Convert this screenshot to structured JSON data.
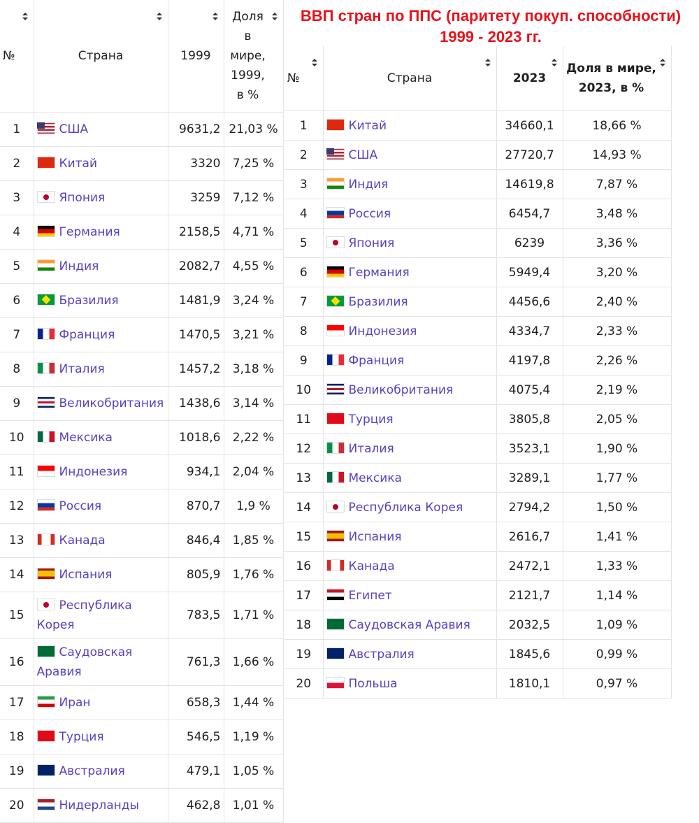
{
  "title": [
    "ВВП стран по ППС (паритету покуп. способности)",
    "1999 - 2023 гг."
  ],
  "table1": {
    "header": [
      "№",
      "Страна",
      "1999",
      "Доля в мире, 1999, в %"
    ],
    "rows": [
      [
        1,
        "США",
        "9631,2",
        "21,03 %"
      ],
      [
        2,
        "Китай",
        "3320",
        "7,25 %"
      ],
      [
        3,
        "Япония",
        "3259",
        "7,12 %"
      ],
      [
        4,
        "Германия",
        "2158,5",
        "4,71 %"
      ],
      [
        5,
        "Индия",
        "2082,7",
        "4,55 %"
      ],
      [
        6,
        "Бразилия",
        "1481,9",
        "3,24 %"
      ],
      [
        7,
        "Франция",
        "1470,5",
        "3,21 %"
      ],
      [
        8,
        "Италия",
        "1457,2",
        "3,18 %"
      ],
      [
        9,
        "Великобритания",
        "1438,6",
        "3,14 %"
      ],
      [
        10,
        "Мексика",
        "1018,6",
        "2,22 %"
      ],
      [
        11,
        "Индонезия",
        "934,1",
        "2,04 %"
      ],
      [
        12,
        "Россия",
        "870,7",
        "1,9 %"
      ],
      [
        13,
        "Канада",
        "846,4",
        "1,85 %"
      ],
      [
        14,
        "Испания",
        "805,9",
        "1,76 %"
      ],
      [
        15,
        "Республика Корея",
        "783,5",
        "1,71 %"
      ],
      [
        16,
        "Саудовская Аравия",
        "761,3",
        "1,66 %"
      ],
      [
        17,
        "Иран",
        "658,3",
        "1,44 %"
      ],
      [
        18,
        "Турция",
        "546,5",
        "1,19 %"
      ],
      [
        19,
        "Австралия",
        "479,1",
        "1,05 %"
      ],
      [
        20,
        "Нидерланды",
        "462,8",
        "1,01 %"
      ]
    ]
  },
  "table2": {
    "header": [
      "№",
      "Страна",
      "2023",
      "Доля в мире, 2023, в %"
    ],
    "rows": [
      [
        1,
        "Китай",
        "34660,1",
        "18,66 %"
      ],
      [
        2,
        "США",
        "27720,7",
        "14,93 %"
      ],
      [
        3,
        "Индия",
        "14619,8",
        "7,87 %"
      ],
      [
        4,
        "Россия",
        "6454,7",
        "3,48 %"
      ],
      [
        5,
        "Япония",
        "6239",
        "3,36 %"
      ],
      [
        6,
        "Германия",
        "5949,4",
        "3,20 %"
      ],
      [
        7,
        "Бразилия",
        "4456,6",
        "2,40 %"
      ],
      [
        8,
        "Индонезия",
        "4334,7",
        "2,33 %"
      ],
      [
        9,
        "Франция",
        "4197,8",
        "2,26 %"
      ],
      [
        10,
        "Великобритания",
        "4075,4",
        "2,19 %"
      ],
      [
        11,
        "Турция",
        "3805,8",
        "2,05 %"
      ],
      [
        12,
        "Италия",
        "3523,1",
        "1,90 %"
      ],
      [
        13,
        "Мексика",
        "3289,1",
        "1,77 %"
      ],
      [
        14,
        "Республика Корея",
        "2794,2",
        "1,50 %"
      ],
      [
        15,
        "Испания",
        "2616,7",
        "1,41 %"
      ],
      [
        16,
        "Канада",
        "2472,1",
        "1,33 %"
      ],
      [
        17,
        "Египет",
        "2121,7",
        "1,14 %"
      ],
      [
        18,
        "Саудовская Аравия",
        "2032,5",
        "1,09 %"
      ],
      [
        19,
        "Австралия",
        "1845,6",
        "0,99 %"
      ],
      [
        20,
        "Польша",
        "1810,1",
        "0,97 %"
      ]
    ]
  }
}
